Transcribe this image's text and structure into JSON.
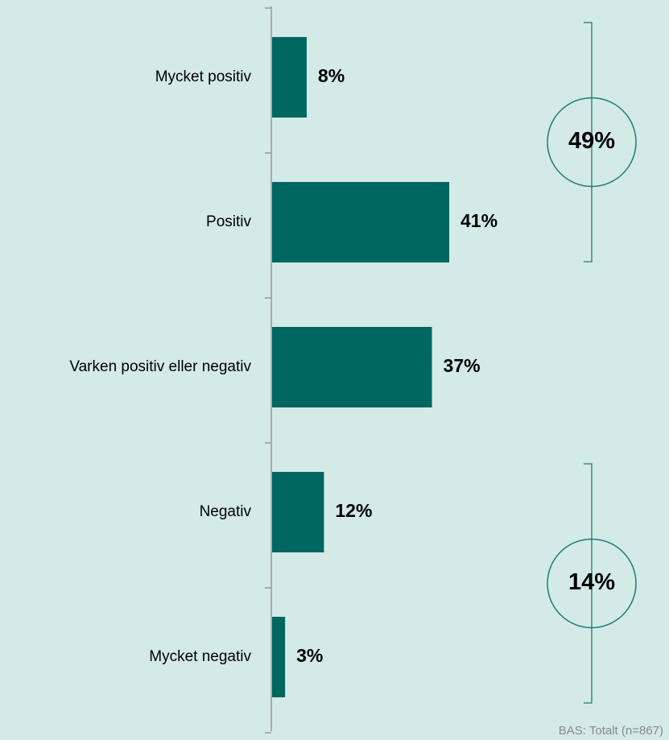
{
  "chart_data": {
    "type": "bar",
    "orientation": "horizontal",
    "categories": [
      "Mycket positiv",
      "Positiv",
      "Varken positiv eller negativ",
      "Negativ",
      "Mycket negativ"
    ],
    "values": [
      8,
      41,
      37,
      12,
      3
    ],
    "value_labels": [
      "8%",
      "41%",
      "37%",
      "12%",
      "3%"
    ],
    "color": "#006660",
    "annotations": [
      "49%",
      "14%"
    ],
    "footnote": "BAS: Totalt (n=867)"
  }
}
